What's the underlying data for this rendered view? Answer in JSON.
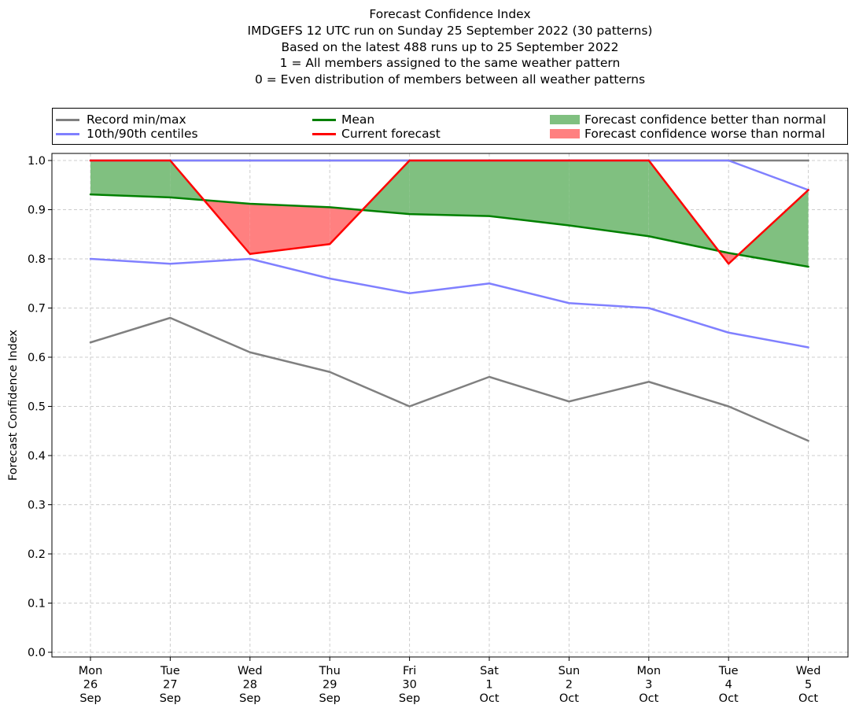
{
  "title_lines": [
    "Forecast Confidence Index",
    "IMDGEFS 12 UTC run on Sunday 25 September 2022 (30 patterns)",
    "Based on the latest 488 runs up to 25 September 2022",
    "1 = All members assigned to the same weather pattern",
    "0 = Even distribution of members between all weather patterns"
  ],
  "legend": {
    "record": "Record min/max",
    "centiles": "10th/90th centiles",
    "mean": "Mean",
    "current": "Current forecast",
    "better": "Forecast confidence better than normal",
    "worse": "Forecast confidence worse than normal"
  },
  "colors": {
    "record": "#808080",
    "centiles": "#8080ff",
    "mean": "#008000",
    "current": "#ff0000",
    "better": "#80c080",
    "worse": "#ff8080"
  },
  "chart_data": {
    "type": "line",
    "ylabel": "Forecast Confidence Index",
    "ylim": [
      0,
      1
    ],
    "yticks": [
      "0.0",
      "0.1",
      "0.2",
      "0.3",
      "0.4",
      "0.5",
      "0.6",
      "0.7",
      "0.8",
      "0.9",
      "1.0"
    ],
    "grid": true,
    "legend_position": "top",
    "categories": [
      [
        "Mon",
        "26",
        "Sep"
      ],
      [
        "Tue",
        "27",
        "Sep"
      ],
      [
        "Wed",
        "28",
        "Sep"
      ],
      [
        "Thu",
        "29",
        "Sep"
      ],
      [
        "Fri",
        "30",
        "Sep"
      ],
      [
        "Sat",
        "1",
        "Oct"
      ],
      [
        "Sun",
        "2",
        "Oct"
      ],
      [
        "Mon",
        "3",
        "Oct"
      ],
      [
        "Tue",
        "4",
        "Oct"
      ],
      [
        "Wed",
        "5",
        "Oct"
      ]
    ],
    "series": [
      {
        "name": "Record min/max",
        "key": "record_max",
        "values": [
          1.0,
          1.0,
          1.0,
          1.0,
          1.0,
          1.0,
          1.0,
          1.0,
          1.0,
          1.0
        ]
      },
      {
        "name": "Record min/max",
        "key": "record_min",
        "values": [
          0.63,
          0.68,
          0.61,
          0.57,
          0.5,
          0.56,
          0.51,
          0.55,
          0.5,
          0.43
        ]
      },
      {
        "name": "10th/90th centiles",
        "key": "p90",
        "values": [
          1.0,
          1.0,
          1.0,
          1.0,
          1.0,
          1.0,
          1.0,
          1.0,
          1.0,
          0.94
        ]
      },
      {
        "name": "10th/90th centiles",
        "key": "p10",
        "values": [
          0.8,
          0.79,
          0.8,
          0.76,
          0.73,
          0.75,
          0.71,
          0.7,
          0.65,
          0.62
        ]
      },
      {
        "name": "Mean",
        "key": "mean",
        "values": [
          0.931,
          0.925,
          0.912,
          0.905,
          0.891,
          0.887,
          0.868,
          0.846,
          0.812,
          0.784
        ]
      },
      {
        "name": "Current forecast",
        "key": "current",
        "values": [
          1.0,
          1.0,
          0.81,
          0.83,
          1.0,
          1.0,
          1.0,
          1.0,
          0.79,
          0.94
        ]
      }
    ]
  }
}
